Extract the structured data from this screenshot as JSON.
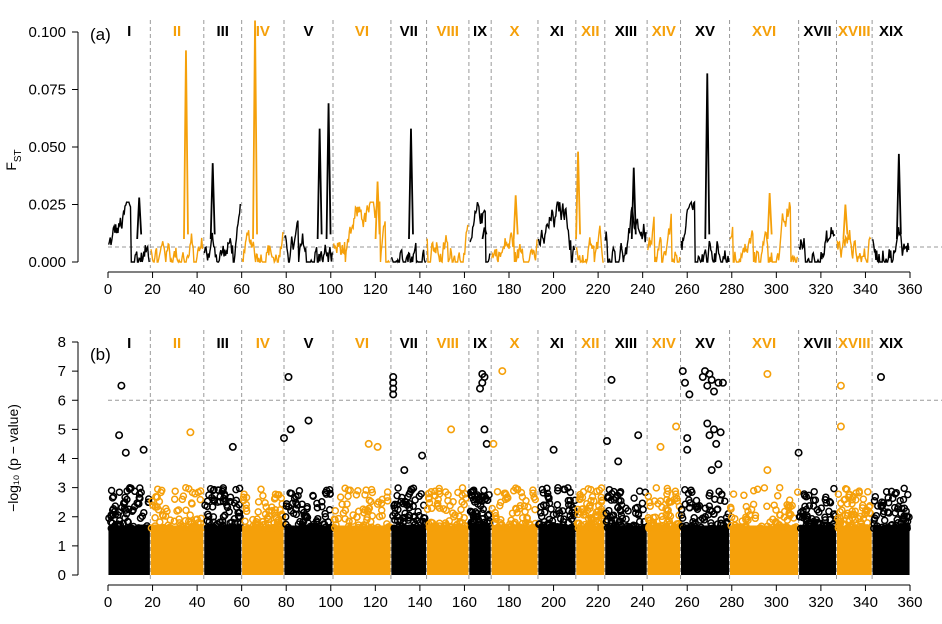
{
  "colors": {
    "odd": "#000000",
    "even": "#f5a00a",
    "guide": "#9a9a9a"
  },
  "chromosomes": [
    "I",
    "II",
    "III",
    "IV",
    "V",
    "VI",
    "VII",
    "VIII",
    "IX",
    "X",
    "XI",
    "XII",
    "XIII",
    "XIV",
    "XV",
    "XVI",
    "XVII",
    "XVIII",
    "XIX"
  ],
  "chromosome_bounds": [
    [
      0,
      19
    ],
    [
      19,
      43
    ],
    [
      43,
      60
    ],
    [
      60,
      79
    ],
    [
      79,
      101
    ],
    [
      101,
      127
    ],
    [
      127,
      143
    ],
    [
      143,
      162
    ],
    [
      162,
      172
    ],
    [
      172,
      193
    ],
    [
      193,
      210
    ],
    [
      210,
      223
    ],
    [
      223,
      242
    ],
    [
      242,
      257
    ],
    [
      257,
      279
    ],
    [
      279,
      310
    ],
    [
      310,
      327
    ],
    [
      327,
      343
    ],
    [
      343,
      360
    ]
  ],
  "chart_data": [
    {
      "panel": "a",
      "type": "line",
      "panel_label": "(a)",
      "ylabel_main": "F",
      "ylabel_sub": "ST",
      "xlim": [
        0,
        360
      ],
      "ylim": [
        0,
        0.1
      ],
      "xticks": [
        "0",
        "20",
        "40",
        "60",
        "80",
        "100",
        "120",
        "140",
        "160",
        "180",
        "200",
        "220",
        "240",
        "260",
        "280",
        "300",
        "320",
        "340",
        "360"
      ],
      "yticks": [
        "0.000",
        "0.025",
        "0.050",
        "0.075",
        "0.100"
      ],
      "threshold": 0.0065,
      "peaks": [
        {
          "chrom": "I",
          "x": 14,
          "y": 0.028
        },
        {
          "chrom": "II",
          "x": 35,
          "y": 0.092
        },
        {
          "chrom": "III",
          "x": 47,
          "y": 0.043
        },
        {
          "chrom": "IV",
          "x": 66,
          "y": 0.105
        },
        {
          "chrom": "V",
          "x": 95,
          "y": 0.058
        },
        {
          "chrom": "V",
          "x": 99,
          "y": 0.069
        },
        {
          "chrom": "VI",
          "x": 121,
          "y": 0.035
        },
        {
          "chrom": "VII",
          "x": 136,
          "y": 0.058
        },
        {
          "chrom": "IX",
          "x": 169,
          "y": 0.015
        },
        {
          "chrom": "X",
          "x": 183,
          "y": 0.029
        },
        {
          "chrom": "XII",
          "x": 211,
          "y": 0.048
        },
        {
          "chrom": "XIII",
          "x": 236,
          "y": 0.041
        },
        {
          "chrom": "XV",
          "x": 269,
          "y": 0.082
        },
        {
          "chrom": "XVI",
          "x": 297,
          "y": 0.03
        },
        {
          "chrom": "XVIII",
          "x": 331,
          "y": 0.025
        },
        {
          "chrom": "XIX",
          "x": 355,
          "y": 0.047
        }
      ]
    },
    {
      "panel": "b",
      "type": "scatter",
      "panel_label": "(b)",
      "ylabel": "−log₁₀ (p − value)",
      "xlim": [
        0,
        360
      ],
      "ylim": [
        0,
        8
      ],
      "xticks": [
        "0",
        "20",
        "40",
        "60",
        "80",
        "100",
        "120",
        "140",
        "160",
        "180",
        "200",
        "220",
        "240",
        "260",
        "280",
        "300",
        "320",
        "340",
        "360"
      ],
      "yticks": [
        "0",
        "1",
        "2",
        "3",
        "4",
        "5",
        "6",
        "7",
        "8"
      ],
      "threshold": 6,
      "outliers": [
        {
          "x": 5,
          "y": 4.8
        },
        {
          "x": 6,
          "y": 6.5
        },
        {
          "x": 8,
          "y": 4.2
        },
        {
          "x": 16,
          "y": 4.3
        },
        {
          "x": 37,
          "y": 4.9
        },
        {
          "x": 56,
          "y": 4.4
        },
        {
          "x": 79,
          "y": 4.7
        },
        {
          "x": 81,
          "y": 6.8
        },
        {
          "x": 82,
          "y": 5.0
        },
        {
          "x": 90,
          "y": 5.3
        },
        {
          "x": 117,
          "y": 4.5
        },
        {
          "x": 121,
          "y": 4.4
        },
        {
          "x": 128,
          "y": 6.2
        },
        {
          "x": 128,
          "y": 6.4
        },
        {
          "x": 128,
          "y": 6.6
        },
        {
          "x": 128,
          "y": 6.8
        },
        {
          "x": 133,
          "y": 3.6
        },
        {
          "x": 141,
          "y": 4.1
        },
        {
          "x": 154,
          "y": 5.0
        },
        {
          "x": 167,
          "y": 6.4
        },
        {
          "x": 168,
          "y": 6.6
        },
        {
          "x": 168,
          "y": 6.9
        },
        {
          "x": 169,
          "y": 6.8
        },
        {
          "x": 169,
          "y": 5.0
        },
        {
          "x": 170,
          "y": 4.5
        },
        {
          "x": 173,
          "y": 4.5
        },
        {
          "x": 177,
          "y": 7.0
        },
        {
          "x": 200,
          "y": 4.3
        },
        {
          "x": 224,
          "y": 4.6
        },
        {
          "x": 226,
          "y": 6.7
        },
        {
          "x": 229,
          "y": 3.9
        },
        {
          "x": 238,
          "y": 4.8
        },
        {
          "x": 248,
          "y": 4.4
        },
        {
          "x": 255,
          "y": 5.1
        },
        {
          "x": 258,
          "y": 7.0
        },
        {
          "x": 259,
          "y": 6.6
        },
        {
          "x": 260,
          "y": 4.7
        },
        {
          "x": 260,
          "y": 4.3
        },
        {
          "x": 261,
          "y": 6.2
        },
        {
          "x": 267,
          "y": 6.8
        },
        {
          "x": 268,
          "y": 7.0
        },
        {
          "x": 269,
          "y": 6.5
        },
        {
          "x": 269,
          "y": 5.2
        },
        {
          "x": 270,
          "y": 6.9
        },
        {
          "x": 270,
          "y": 4.8
        },
        {
          "x": 271,
          "y": 6.7
        },
        {
          "x": 271,
          "y": 3.6
        },
        {
          "x": 272,
          "y": 6.3
        },
        {
          "x": 272,
          "y": 5.0
        },
        {
          "x": 273,
          "y": 4.5
        },
        {
          "x": 274,
          "y": 6.6
        },
        {
          "x": 274,
          "y": 3.8
        },
        {
          "x": 275,
          "y": 4.9
        },
        {
          "x": 276,
          "y": 6.6
        },
        {
          "x": 296,
          "y": 6.9
        },
        {
          "x": 296,
          "y": 3.6
        },
        {
          "x": 310,
          "y": 4.2
        },
        {
          "x": 329,
          "y": 6.5
        },
        {
          "x": 329,
          "y": 5.1
        },
        {
          "x": 347,
          "y": 6.8
        }
      ]
    }
  ]
}
